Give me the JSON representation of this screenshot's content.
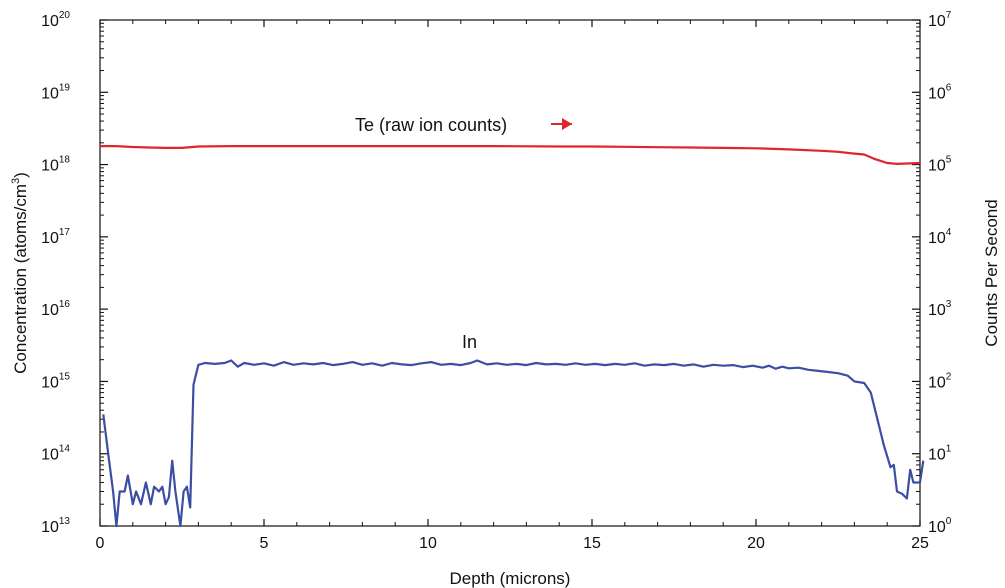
{
  "chart_data": {
    "type": "line",
    "xlabel": "Depth (microns)",
    "ylabel_left": "Concentration (atoms/cm",
    "ylabel_left_sup": "3",
    "ylabel_left_close": ")",
    "ylabel_right": "Counts Per Second",
    "xlim": [
      0,
      25
    ],
    "ylim_left": [
      10000000000000.0,
      1e+20
    ],
    "ylim_right": [
      1,
      10000000.0
    ],
    "yscale": "log",
    "grid": false,
    "legend": "none",
    "x_ticks": [
      "0",
      "5",
      "10",
      "15",
      "20",
      "25"
    ],
    "left_ticks": {
      "base": "10",
      "exponents": [
        "13",
        "14",
        "15",
        "16",
        "17",
        "18",
        "19",
        "20"
      ]
    },
    "right_ticks": {
      "base": "10",
      "exponents": [
        "0",
        "1",
        "2",
        "3",
        "4",
        "5",
        "6",
        "7"
      ]
    },
    "annotations": {
      "te": "Te (raw ion counts)",
      "in": "In"
    },
    "series": [
      {
        "name": "Te",
        "axis": "right",
        "color": "#e0242b",
        "points": [
          [
            0,
            180000.0
          ],
          [
            0.5,
            180000.0
          ],
          [
            1,
            175000.0
          ],
          [
            1.5,
            172000.0
          ],
          [
            2,
            170000.0
          ],
          [
            2.5,
            170000.0
          ],
          [
            3,
            178000.0
          ],
          [
            4,
            180000.0
          ],
          [
            6,
            180000.0
          ],
          [
            8,
            180000.0
          ],
          [
            10,
            180000.0
          ],
          [
            12,
            180000.0
          ],
          [
            14,
            178000.0
          ],
          [
            15,
            178000.0
          ],
          [
            16,
            176000.0
          ],
          [
            17,
            174000.0
          ],
          [
            18,
            172000.0
          ],
          [
            19,
            170000.0
          ],
          [
            20,
            168000.0
          ],
          [
            21,
            162000.0
          ],
          [
            22,
            155000.0
          ],
          [
            22.5,
            150000.0
          ],
          [
            23,
            142000.0
          ],
          [
            23.3,
            138000.0
          ],
          [
            23.6,
            120000.0
          ],
          [
            24,
            105000.0
          ],
          [
            24.3,
            102000.0
          ],
          [
            25,
            105000.0
          ]
        ]
      },
      {
        "name": "In",
        "axis": "left",
        "color": "#3b4ea3",
        "points": [
          [
            0.1,
            350000000000000.0
          ],
          [
            0.25,
            100000000000000.0
          ],
          [
            0.4,
            30000000000000.0
          ],
          [
            0.5,
            10000000000000.0
          ],
          [
            0.6,
            30000000000000.0
          ],
          [
            0.75,
            30000000000000.0
          ],
          [
            0.85,
            50000000000000.0
          ],
          [
            1.0,
            20000000000000.0
          ],
          [
            1.1,
            30000000000000.0
          ],
          [
            1.25,
            20000000000000.0
          ],
          [
            1.4,
            40000000000000.0
          ],
          [
            1.55,
            20000000000000.0
          ],
          [
            1.65,
            35000000000000.0
          ],
          [
            1.8,
            30000000000000.0
          ],
          [
            1.9,
            35000000000000.0
          ],
          [
            2.0,
            20000000000000.0
          ],
          [
            2.1,
            25000000000000.0
          ],
          [
            2.2,
            80000000000000.0
          ],
          [
            2.3,
            30000000000000.0
          ],
          [
            2.45,
            10000000000000.0
          ],
          [
            2.55,
            30000000000000.0
          ],
          [
            2.65,
            35000000000000.0
          ],
          [
            2.75,
            18000000000000.0
          ],
          [
            2.85,
            900000000000000.0
          ],
          [
            3.0,
            1700000000000000.0
          ],
          [
            3.2,
            1800000000000000.0
          ],
          [
            3.5,
            1750000000000000.0
          ],
          [
            3.8,
            1800000000000000.0
          ],
          [
            4.0,
            1950000000000000.0
          ],
          [
            4.2,
            1600000000000000.0
          ],
          [
            4.4,
            1800000000000000.0
          ],
          [
            4.7,
            1700000000000000.0
          ],
          [
            5.0,
            1780000000000000.0
          ],
          [
            5.3,
            1650000000000000.0
          ],
          [
            5.6,
            1850000000000000.0
          ],
          [
            5.9,
            1700000000000000.0
          ],
          [
            6.2,
            1780000000000000.0
          ],
          [
            6.5,
            1720000000000000.0
          ],
          [
            6.8,
            1800000000000000.0
          ],
          [
            7.1,
            1680000000000000.0
          ],
          [
            7.4,
            1750000000000000.0
          ],
          [
            7.7,
            1850000000000000.0
          ],
          [
            8.0,
            1700000000000000.0
          ],
          [
            8.3,
            1780000000000000.0
          ],
          [
            8.6,
            1650000000000000.0
          ],
          [
            8.9,
            1800000000000000.0
          ],
          [
            9.2,
            1720000000000000.0
          ],
          [
            9.5,
            1680000000000000.0
          ],
          [
            9.8,
            1780000000000000.0
          ],
          [
            10.1,
            1850000000000000.0
          ],
          [
            10.4,
            1700000000000000.0
          ],
          [
            10.7,
            1750000000000000.0
          ],
          [
            11.0,
            1680000000000000.0
          ],
          [
            11.3,
            1800000000000000.0
          ],
          [
            11.5,
            1950000000000000.0
          ],
          [
            11.8,
            1720000000000000.0
          ],
          [
            12.1,
            1780000000000000.0
          ],
          [
            12.4,
            1700000000000000.0
          ],
          [
            12.7,
            1750000000000000.0
          ],
          [
            13.0,
            1680000000000000.0
          ],
          [
            13.3,
            1800000000000000.0
          ],
          [
            13.6,
            1720000000000000.0
          ],
          [
            13.9,
            1750000000000000.0
          ],
          [
            14.2,
            1700000000000000.0
          ],
          [
            14.5,
            1780000000000000.0
          ],
          [
            14.8,
            1700000000000000.0
          ],
          [
            15.1,
            1750000000000000.0
          ],
          [
            15.4,
            1680000000000000.0
          ],
          [
            15.7,
            1750000000000000.0
          ],
          [
            16.0,
            1700000000000000.0
          ],
          [
            16.3,
            1780000000000000.0
          ],
          [
            16.6,
            1650000000000000.0
          ],
          [
            16.9,
            1720000000000000.0
          ],
          [
            17.2,
            1680000000000000.0
          ],
          [
            17.5,
            1750000000000000.0
          ],
          [
            17.8,
            1650000000000000.0
          ],
          [
            18.1,
            1720000000000000.0
          ],
          [
            18.4,
            1600000000000000.0
          ],
          [
            18.7,
            1700000000000000.0
          ],
          [
            19.0,
            1650000000000000.0
          ],
          [
            19.3,
            1680000000000000.0
          ],
          [
            19.6,
            1580000000000000.0
          ],
          [
            19.9,
            1650000000000000.0
          ],
          [
            20.2,
            1550000000000000.0
          ],
          [
            20.4,
            1650000000000000.0
          ],
          [
            20.6,
            1500000000000000.0
          ],
          [
            20.8,
            1600000000000000.0
          ],
          [
            21.0,
            1520000000000000.0
          ],
          [
            21.3,
            1550000000000000.0
          ],
          [
            21.6,
            1450000000000000.0
          ],
          [
            21.9,
            1400000000000000.0
          ],
          [
            22.2,
            1350000000000000.0
          ],
          [
            22.5,
            1300000000000000.0
          ],
          [
            22.8,
            1200000000000000.0
          ],
          [
            23.0,
            1000000000000000.0
          ],
          [
            23.3,
            950000000000000.0
          ],
          [
            23.5,
            700000000000000.0
          ],
          [
            23.7,
            300000000000000.0
          ],
          [
            23.9,
            130000000000000.0
          ],
          [
            24.1,
            65000000000000.0
          ],
          [
            24.2,
            70000000000000.0
          ],
          [
            24.3,
            30000000000000.0
          ],
          [
            24.45,
            28000000000000.0
          ],
          [
            24.6,
            24000000000000.0
          ],
          [
            24.7,
            60000000000000.0
          ],
          [
            24.8,
            40000000000000.0
          ],
          [
            25.0,
            40000000000000.0
          ],
          [
            25.1,
            80000000000000.0
          ]
        ]
      }
    ]
  }
}
